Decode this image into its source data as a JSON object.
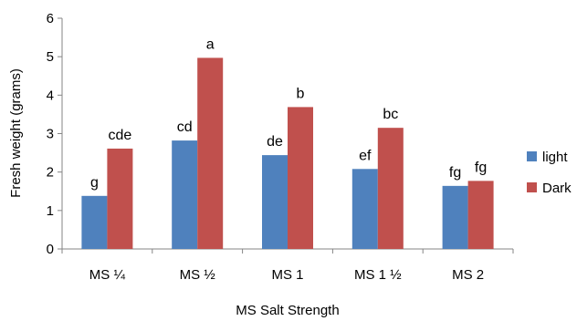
{
  "chart_data": {
    "type": "bar",
    "title": "",
    "xlabel": "MS Salt Strength",
    "ylabel": "Fresh weight (grams)",
    "ylim": [
      0,
      6
    ],
    "yticks": [
      0,
      1,
      2,
      3,
      4,
      5,
      6
    ],
    "grid": false,
    "legend_position": "right",
    "categories": [
      "MS ¼",
      "MS ½",
      "MS 1",
      "MS 1 ½",
      "MS 2"
    ],
    "series": [
      {
        "name": "light",
        "color": "#4F81BD",
        "values": [
          1.38,
          2.82,
          2.44,
          2.08,
          1.64
        ],
        "labels": [
          "g",
          "cd",
          "de",
          "ef",
          "fg"
        ]
      },
      {
        "name": "Dark",
        "color": "#C0504D",
        "values": [
          2.61,
          4.97,
          3.69,
          3.15,
          1.77
        ],
        "labels": [
          "cde",
          "a",
          "b",
          "bc",
          "fg"
        ]
      }
    ]
  }
}
